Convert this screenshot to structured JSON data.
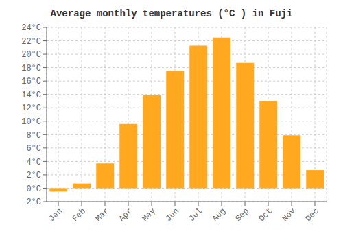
{
  "chart_data": {
    "type": "bar",
    "title": "Average monthly temperatures (°C ) in Fuji",
    "categories": [
      "Jan",
      "Feb",
      "Mar",
      "Apr",
      "May",
      "Jun",
      "Jul",
      "Aug",
      "Sep",
      "Oct",
      "Nov",
      "Dec"
    ],
    "values": [
      -0.5,
      0.7,
      3.7,
      9.6,
      13.9,
      17.5,
      21.3,
      22.5,
      18.7,
      13.0,
      7.9,
      2.7
    ],
    "color": "#FFA820",
    "ylim": [
      -2,
      24
    ],
    "yticks": [
      {
        "value": -2,
        "label": "-2°C"
      },
      {
        "value": 0,
        "label": "0°C"
      },
      {
        "value": 2,
        "label": "2°C"
      },
      {
        "value": 4,
        "label": "4°C"
      },
      {
        "value": 6,
        "label": "6°C"
      },
      {
        "value": 8,
        "label": "8°C"
      },
      {
        "value": 10,
        "label": "10°C"
      },
      {
        "value": 12,
        "label": "12°C"
      },
      {
        "value": 14,
        "label": "14°C"
      },
      {
        "value": 16,
        "label": "16°C"
      },
      {
        "value": 18,
        "label": "18°C"
      },
      {
        "value": 20,
        "label": "20°C"
      },
      {
        "value": 22,
        "label": "22°C"
      },
      {
        "value": 24,
        "label": "24°C"
      }
    ],
    "grid": true
  }
}
